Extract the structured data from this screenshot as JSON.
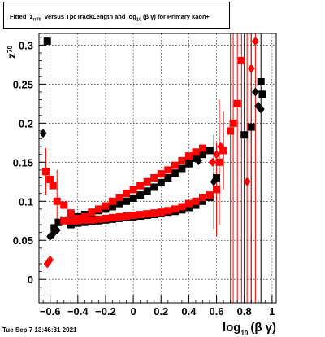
{
  "title": {
    "prefix": "Fitted",
    "z": "z",
    "z_sub": "π",
    "z_sub2": "70",
    "middle": "versus TpcTrackLength and log",
    "log_sub": "10",
    "arg": "(β γ)",
    "suffix": "for Primary kaon+"
  },
  "datestamp": "Tue Sep  7 13:46:31 2021",
  "chart_data": {
    "type": "scatter",
    "xlim": [
      -0.68,
      1.03
    ],
    "ylim": [
      -0.03,
      0.315
    ],
    "grid": true,
    "xlabel": {
      "main": "log",
      "sub": "10",
      "arg": "(β γ)"
    },
    "ylabel": {
      "main": "z",
      "sub": "70"
    },
    "xticks": [
      {
        "v": -0.6,
        "label": "−0.6"
      },
      {
        "v": -0.4,
        "label": "−0.4"
      },
      {
        "v": -0.2,
        "label": "−0.2"
      },
      {
        "v": 0,
        "label": "0"
      },
      {
        "v": 0.2,
        "label": "0.2"
      },
      {
        "v": 0.4,
        "label": "0.4"
      },
      {
        "v": 0.6,
        "label": "0.6"
      },
      {
        "v": 0.8,
        "label": "0.8"
      },
      {
        "v": 1,
        "label": "1"
      }
    ],
    "yticks": [
      {
        "v": 0,
        "label": "0"
      },
      {
        "v": 0.05,
        "label": "0.05"
      },
      {
        "v": 0.1,
        "label": "0.1"
      },
      {
        "v": 0.15,
        "label": "0.15"
      },
      {
        "v": 0.2,
        "label": "0.2"
      },
      {
        "v": 0.25,
        "label": "0.25"
      },
      {
        "v": 0.3,
        "label": "0.3"
      }
    ],
    "series": [
      {
        "marker": "square",
        "color": "#000000",
        "points": [
          [
            -0.62,
            0.305
          ],
          [
            -0.57,
            0.066
          ],
          [
            -0.54,
            0.073
          ],
          [
            -0.5,
            0.076
          ],
          [
            -0.45,
            0.078
          ],
          [
            -0.4,
            0.08
          ],
          [
            -0.35,
            0.083
          ],
          [
            -0.3,
            0.085
          ],
          [
            -0.25,
            0.088
          ],
          [
            -0.2,
            0.09
          ],
          [
            -0.15,
            0.093
          ],
          [
            -0.1,
            0.097
          ],
          [
            -0.05,
            0.1
          ],
          [
            0.0,
            0.104
          ],
          [
            0.05,
            0.108
          ],
          [
            0.1,
            0.113
          ],
          [
            0.15,
            0.118
          ],
          [
            0.2,
            0.124
          ],
          [
            0.25,
            0.13
          ],
          [
            0.3,
            0.136
          ],
          [
            0.35,
            0.142
          ],
          [
            0.4,
            0.148
          ],
          [
            0.45,
            0.155
          ],
          [
            0.5,
            0.16
          ],
          [
            0.55,
            0.165
          ],
          [
            -0.45,
            0.07
          ],
          [
            -0.4,
            0.072
          ],
          [
            -0.35,
            0.073
          ],
          [
            -0.3,
            0.074
          ],
          [
            -0.25,
            0.075
          ],
          [
            -0.2,
            0.076
          ],
          [
            -0.15,
            0.077
          ],
          [
            -0.1,
            0.078
          ],
          [
            -0.05,
            0.079
          ],
          [
            0.0,
            0.08
          ],
          [
            0.05,
            0.081
          ],
          [
            0.1,
            0.082
          ],
          [
            0.15,
            0.083
          ],
          [
            0.2,
            0.084
          ],
          [
            0.25,
            0.086
          ],
          [
            0.3,
            0.087
          ],
          [
            0.35,
            0.089
          ],
          [
            0.4,
            0.092
          ],
          [
            0.45,
            0.095
          ],
          [
            0.5,
            0.1
          ],
          [
            0.55,
            0.105
          ],
          [
            0.6,
            0.13
          ],
          [
            0.8,
            0.185
          ],
          [
            0.85,
            0.195
          ],
          [
            0.92,
            0.253
          ],
          [
            0.93,
            0.237
          ]
        ],
        "errors": [
          [
            0.8,
            0.185,
            0.5
          ],
          [
            0.85,
            0.195,
            0.4
          ]
        ]
      },
      {
        "marker": "diamond",
        "color": "#000000",
        "points": [
          [
            -0.65,
            0.187
          ],
          [
            -0.6,
            0.055
          ],
          [
            -0.58,
            0.058
          ],
          [
            -0.55,
            0.063
          ],
          [
            0.47,
            0.152
          ],
          [
            0.58,
            0.125
          ],
          [
            0.88,
            0.24
          ],
          [
            0.9,
            0.222
          ],
          [
            0.92,
            0.218
          ]
        ],
        "errors": [
          [
            0.58,
            0.125,
            0.06
          ],
          [
            0.92,
            0.218,
            0.5
          ]
        ]
      },
      {
        "marker": "square",
        "color": "#ff0000",
        "points": [
          [
            -0.63,
            0.138
          ],
          [
            -0.6,
            0.128
          ],
          [
            -0.58,
            0.12
          ],
          [
            -0.55,
            0.1
          ],
          [
            -0.5,
            0.095
          ],
          [
            -0.45,
            0.085
          ],
          [
            -0.4,
            0.078
          ],
          [
            -0.35,
            0.08
          ],
          [
            -0.3,
            0.086
          ],
          [
            -0.25,
            0.09
          ],
          [
            -0.2,
            0.094
          ],
          [
            -0.15,
            0.1
          ],
          [
            -0.1,
            0.105
          ],
          [
            -0.05,
            0.11
          ],
          [
            0.0,
            0.115
          ],
          [
            0.05,
            0.12
          ],
          [
            0.1,
            0.125
          ],
          [
            0.15,
            0.13
          ],
          [
            0.2,
            0.135
          ],
          [
            0.25,
            0.14
          ],
          [
            0.3,
            0.146
          ],
          [
            0.35,
            0.152
          ],
          [
            0.4,
            0.158
          ],
          [
            0.45,
            0.163
          ],
          [
            0.5,
            0.168
          ],
          [
            -0.5,
            0.075
          ],
          [
            -0.45,
            0.075
          ],
          [
            -0.4,
            0.075
          ],
          [
            -0.35,
            0.076
          ],
          [
            -0.3,
            0.076
          ],
          [
            -0.25,
            0.077
          ],
          [
            -0.2,
            0.078
          ],
          [
            -0.15,
            0.079
          ],
          [
            -0.1,
            0.08
          ],
          [
            -0.05,
            0.081
          ],
          [
            0.0,
            0.082
          ],
          [
            0.05,
            0.083
          ],
          [
            0.1,
            0.084
          ],
          [
            0.15,
            0.085
          ],
          [
            0.2,
            0.086
          ],
          [
            0.25,
            0.088
          ],
          [
            0.3,
            0.09
          ],
          [
            0.35,
            0.093
          ],
          [
            0.4,
            0.097
          ],
          [
            0.45,
            0.1
          ],
          [
            0.5,
            0.105
          ],
          [
            0.55,
            0.108
          ],
          [
            0.6,
            0.115
          ],
          [
            0.62,
            0.15
          ],
          [
            0.65,
            0.165
          ],
          [
            0.7,
            0.19
          ],
          [
            0.72,
            0.2
          ],
          [
            0.75,
            0.225
          ],
          [
            0.78,
            0.28
          ]
        ],
        "errors": [
          [
            -0.63,
            0.138,
            0.03
          ],
          [
            -0.55,
            0.1,
            0.04
          ],
          [
            0.6,
            0.115,
            0.06
          ],
          [
            0.62,
            0.15,
            0.08
          ],
          [
            0.65,
            0.165,
            0.05
          ],
          [
            0.7,
            0.19,
            0.6
          ],
          [
            0.72,
            0.2,
            0.6
          ],
          [
            0.75,
            0.225,
            0.5
          ],
          [
            0.78,
            0.28,
            0.5
          ]
        ]
      },
      {
        "marker": "diamond",
        "color": "#ff0000",
        "points": [
          [
            -0.62,
            0.02
          ],
          [
            -0.6,
            0.025
          ],
          [
            0.57,
            0.15
          ],
          [
            0.6,
            0.16
          ],
          [
            0.63,
            0.17
          ],
          [
            0.82,
            0.125
          ],
          [
            0.85,
            0.27
          ],
          [
            0.88,
            0.305
          ]
        ],
        "errors": [
          [
            0.82,
            0.125,
            0.5
          ],
          [
            0.85,
            0.27,
            0.5
          ],
          [
            0.88,
            0.305,
            0.5
          ]
        ]
      }
    ]
  }
}
